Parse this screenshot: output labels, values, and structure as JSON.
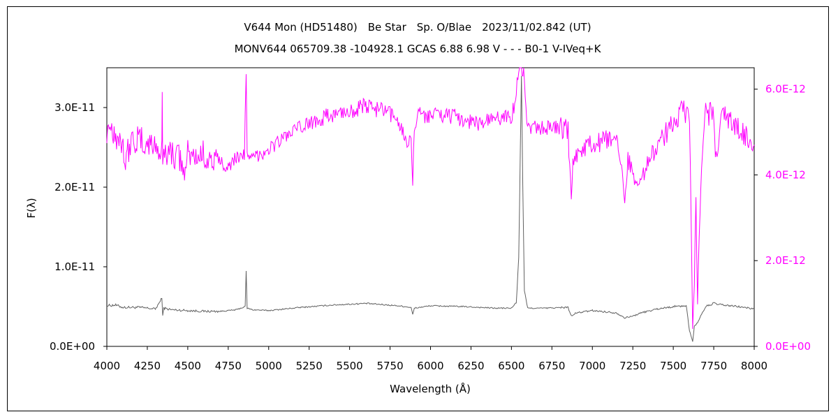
{
  "chart_data": {
    "type": "line",
    "title": "V644 Mon (HD51480)　Be Star　Sp. O/Blae　2023/11/02.842 (UT)",
    "subtitle": "MONV644 065709.38 -104928.1 GCAS 6.88 6.98 V - - - B0-1 V-IVeq+K",
    "xlabel": "Wavelength (Å)",
    "ylabel": "F(λ)",
    "xlim": [
      4000,
      8000
    ],
    "ylim_left": [
      0,
      3.5e-11
    ],
    "ylim_right": [
      0,
      6.5e-12
    ],
    "x_ticks": [
      "4000",
      "4250",
      "4500",
      "4750",
      "5000",
      "5250",
      "5500",
      "5750",
      "6000",
      "6250",
      "6500",
      "6750",
      "7000",
      "7250",
      "7500",
      "7750",
      "8000"
    ],
    "y_ticks_left": [
      "0.0E+00",
      "1.0E-11",
      "2.0E-11",
      "3.0E-11"
    ],
    "y_ticks_right": [
      "0.0E+00",
      "2.0E-12",
      "4.0E-12",
      "6.0E-12"
    ],
    "grid": false,
    "series": [
      {
        "name": "",
        "axis": "left",
        "color": "#606060",
        "x": [
          4000,
          4050,
          4100,
          4200,
          4300,
          4340,
          4345,
          4352,
          4400,
          4500,
          4600,
          4700,
          4800,
          4855,
          4861,
          4867,
          4900,
          5000,
          5200,
          5400,
          5600,
          5800,
          5880,
          5890,
          5900,
          6000,
          6200,
          6400,
          6500,
          6530,
          6545,
          6555,
          6562,
          6570,
          6580,
          6600,
          6700,
          6850,
          6870,
          6900,
          7000,
          7150,
          7200,
          7250,
          7300,
          7400,
          7500,
          7580,
          7600,
          7620,
          7630,
          7650,
          7700,
          7750,
          7800,
          7900,
          8000
        ],
        "y": [
          5.1e-12,
          5.2e-12,
          4.9e-12,
          4.9e-12,
          4.7e-12,
          6e-12,
          4e-12,
          4.8e-12,
          4.6e-12,
          4.5e-12,
          4.4e-12,
          4.4e-12,
          4.6e-12,
          5e-12,
          9.4e-12,
          4.8e-12,
          4.6e-12,
          4.5e-12,
          4.9e-12,
          5.2e-12,
          5.4e-12,
          5.1e-12,
          4.9e-12,
          4e-12,
          4.8e-12,
          5.1e-12,
          5e-12,
          4.8e-12,
          4.8e-12,
          5.5e-12,
          1.1e-11,
          2.5e-11,
          3.4e-11,
          2e-11,
          7e-12,
          4.8e-12,
          4.8e-12,
          4.9e-12,
          3.8e-12,
          4.2e-12,
          4.5e-12,
          4.2e-12,
          3.6e-12,
          3.8e-12,
          4.2e-12,
          4.7e-12,
          5e-12,
          5.1e-12,
          2e-12,
          6e-13,
          2.5e-12,
          3e-12,
          5e-12,
          5.4e-12,
          5.2e-12,
          5e-12,
          4.7e-12
        ]
      },
      {
        "name": "",
        "axis": "right",
        "color": "#ff00ff",
        "x": [
          4000,
          4020,
          4060,
          4100,
          4110,
          4150,
          4200,
          4250,
          4300,
          4340,
          4342,
          4345,
          4352,
          4400,
          4450,
          4480,
          4500,
          4550,
          4600,
          4650,
          4700,
          4750,
          4800,
          4850,
          4855,
          4861,
          4867,
          4880,
          4900,
          4950,
          5000,
          5100,
          5200,
          5300,
          5400,
          5500,
          5600,
          5700,
          5800,
          5860,
          5880,
          5890,
          5900,
          5920,
          6000,
          6100,
          6200,
          6300,
          6400,
          6500,
          6520,
          6545,
          6555,
          6562,
          6575,
          6590,
          6620,
          6700,
          6800,
          6850,
          6860,
          6870,
          6880,
          6900,
          7000,
          7100,
          7150,
          7180,
          7200,
          7220,
          7250,
          7300,
          7400,
          7500,
          7550,
          7580,
          7600,
          7610,
          7620,
          7630,
          7640,
          7650,
          7660,
          7680,
          7700,
          7720,
          7750,
          7760,
          7800,
          7900,
          8000
        ],
        "y": [
          5.1e-12,
          5.2e-12,
          4.9e-12,
          4.8e-12,
          4.3e-12,
          4.8e-12,
          4.8e-12,
          4.7e-12,
          4.7e-12,
          4.5e-12,
          6.1e-12,
          4e-12,
          4.6e-12,
          4.5e-12,
          4.4e-12,
          4e-12,
          4.5e-12,
          4.4e-12,
          4.5e-12,
          4.3e-12,
          4.3e-12,
          4.2e-12,
          4.4e-12,
          4.5e-12,
          5.5e-12,
          6.5e-12,
          4.4e-12,
          4.3e-12,
          4.4e-12,
          4.5e-12,
          4.6e-12,
          4.9e-12,
          5.1e-12,
          5.3e-12,
          5.4e-12,
          5.5e-12,
          5.6e-12,
          5.5e-12,
          5.3e-12,
          4.7e-12,
          5e-12,
          3.7e-12,
          5.2e-12,
          5.4e-12,
          5.4e-12,
          5.4e-12,
          5.3e-12,
          5.2e-12,
          5.3e-12,
          5.4e-12,
          5.6e-12,
          6.5e-12,
          6.5e-12,
          6.5e-12,
          6.5e-12,
          5.4e-12,
          5.1e-12,
          5.1e-12,
          5.1e-12,
          5e-12,
          4.1e-12,
          3.4e-12,
          4.4e-12,
          4.5e-12,
          4.7e-12,
          4.8e-12,
          4.7e-12,
          4.2e-12,
          3.5e-12,
          4.4e-12,
          4e-12,
          3.9e-12,
          4.7e-12,
          5.2e-12,
          5.5e-12,
          5.4e-12,
          5.2e-12,
          3e-12,
          4e-13,
          1.5e-12,
          3.4e-12,
          1e-12,
          2.6e-12,
          4.5e-12,
          5.6e-12,
          5.4e-12,
          5.5e-12,
          4.2e-12,
          5.4e-12,
          5.1e-12,
          4.7e-12
        ]
      }
    ]
  }
}
